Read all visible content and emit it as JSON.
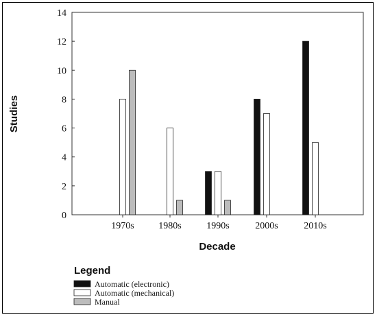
{
  "chart_data": {
    "type": "bar",
    "title": "",
    "xlabel": "Decade",
    "ylabel": "Studies",
    "ylim": [
      0,
      14
    ],
    "yticks": [
      "0",
      "2",
      "4",
      "6",
      "8",
      "10",
      "12",
      "14"
    ],
    "categories": [
      "1970s",
      "1980s",
      "1990s",
      "2000s",
      "2010s"
    ],
    "series": [
      {
        "name": "Automatic (electronic)",
        "color": "#111111",
        "values": [
          0,
          0,
          3,
          8,
          12
        ]
      },
      {
        "name": "Automatic (mechanical)",
        "color": "#ffffff",
        "values": [
          8,
          6,
          3,
          7,
          5
        ]
      },
      {
        "name": "Manual",
        "color": "#bcbcbc",
        "values": [
          10,
          1,
          1,
          0,
          0
        ]
      }
    ],
    "grid": false,
    "legend": {
      "title": "Legend",
      "placement": "bottom-left"
    }
  }
}
